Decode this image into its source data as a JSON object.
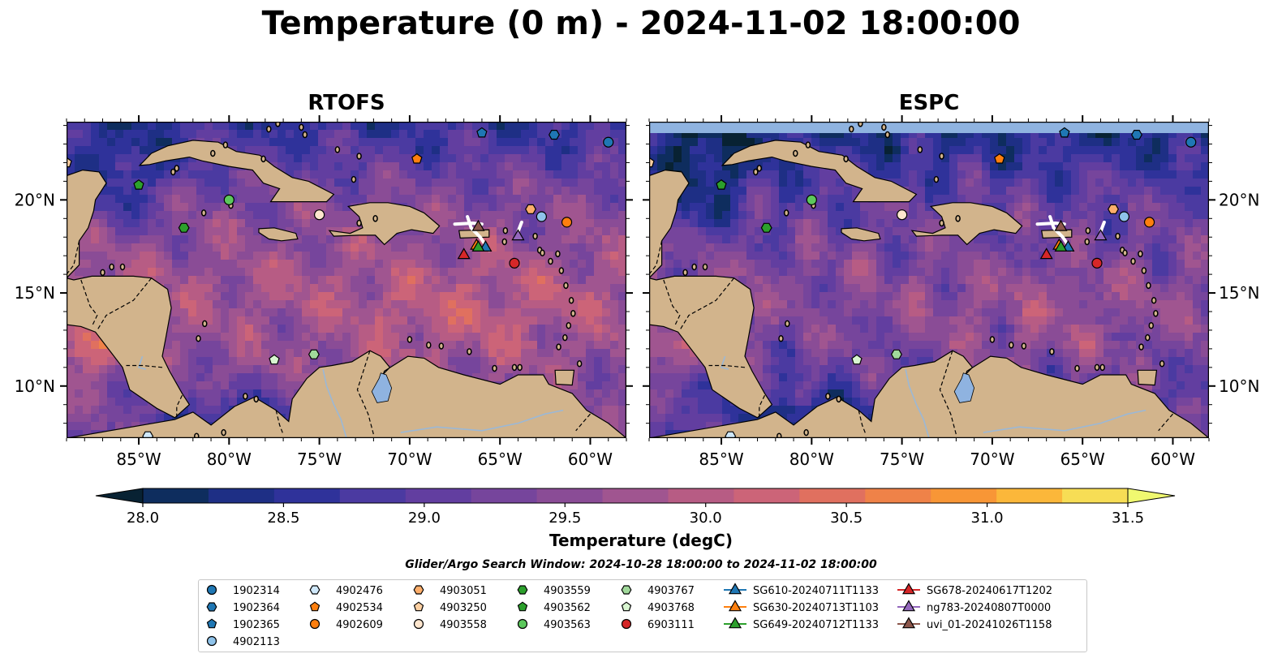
{
  "title": "Temperature (0 m) - 2024-11-02 18:00:00",
  "panels": [
    {
      "title": "RTOFS"
    },
    {
      "title": "ESPC"
    }
  ],
  "colorbar": {
    "label": "Temperature (degC)",
    "ticks": [
      "28.0",
      "28.5",
      "29.0",
      "29.5",
      "30.0",
      "30.5",
      "31.0",
      "31.5"
    ],
    "range": [
      28.0,
      31.5
    ],
    "extend": "both",
    "colors": [
      "#082233",
      "#0e2d5e",
      "#1e2f85",
      "#2f329a",
      "#4b3aa1",
      "#623ea0",
      "#76459c",
      "#8a4c96",
      "#a05590",
      "#b75c84",
      "#cc6478",
      "#e0705f",
      "#ef8248",
      "#f89636",
      "#fbb73a",
      "#f7dd55",
      "#f0f970"
    ]
  },
  "map_axes": {
    "lon_ticks": [
      "85°W",
      "80°W",
      "75°W",
      "70°W",
      "65°W",
      "60°W"
    ],
    "lat_ticks": [
      "20°N",
      "15°N",
      "10°N"
    ],
    "lon_range": [
      -89,
      -58
    ],
    "lat_range": [
      7.2,
      24.2
    ]
  },
  "search_window": "Glider/Argo Search Window: 2024-10-28 18:00:00 to 2024-11-02 18:00:00",
  "colors": {
    "land": "#d2b48c",
    "ocean_base": "#5a3e9c",
    "lake": "#8fb3e0"
  },
  "chart_data": {
    "type": "heatmap",
    "variable": "Temperature (0 m)",
    "units": "degC",
    "platforms": [
      {
        "name": "1902314",
        "marker": "circle",
        "color": "#1f77b4",
        "lon": -59.0,
        "lat": 23.1
      },
      {
        "name": "1902364",
        "marker": "hexagon",
        "color": "#1f77b4",
        "lon": -62.0,
        "lat": 23.5
      },
      {
        "name": "1902365",
        "marker": "pentagon",
        "color": "#1f77b4",
        "lon": -66.0,
        "lat": 23.6
      },
      {
        "name": "4902113",
        "marker": "circle",
        "color": "#8fc3ea",
        "lon": -62.7,
        "lat": 19.1
      },
      {
        "name": "4902476",
        "marker": "hexagon",
        "color": "#cfe8fa",
        "lon": -84.5,
        "lat": 7.3
      },
      {
        "name": "4902534",
        "marker": "pentagon",
        "color": "#ff7f0e",
        "lon": -69.6,
        "lat": 22.2
      },
      {
        "name": "4902609",
        "marker": "circle",
        "color": "#ff7f0e",
        "lon": -61.3,
        "lat": 18.8
      },
      {
        "name": "4903051",
        "marker": "hexagon",
        "color": "#fdae6b",
        "lon": -63.3,
        "lat": 19.5
      },
      {
        "name": "4903250",
        "marker": "pentagon",
        "color": "#fdd0a2",
        "lon": -89.0,
        "lat": 22.0
      },
      {
        "name": "4903558",
        "marker": "circle",
        "color": "#fee6ce",
        "lon": -75.0,
        "lat": 19.2
      },
      {
        "name": "4903559",
        "marker": "hexagon",
        "color": "#2ca02c",
        "lon": -82.5,
        "lat": 18.5
      },
      {
        "name": "4903562",
        "marker": "pentagon",
        "color": "#2ca02c",
        "lon": -85.0,
        "lat": 20.8
      },
      {
        "name": "4903563",
        "marker": "circle",
        "color": "#5cc85c",
        "lon": -80.0,
        "lat": 20.0
      },
      {
        "name": "4903767",
        "marker": "hexagon",
        "color": "#a1d99b",
        "lon": -75.3,
        "lat": 11.7
      },
      {
        "name": "4903768",
        "marker": "pentagon",
        "color": "#d8f5d0",
        "lon": -77.5,
        "lat": 11.4
      },
      {
        "name": "6903111",
        "marker": "circle",
        "color": "#d62728",
        "lon": -64.2,
        "lat": 16.6
      },
      {
        "name": "SG610-20240711T1133",
        "marker": "triangle",
        "color": "#1f77b4",
        "lon": -65.8,
        "lat": 17.5
      },
      {
        "name": "SG630-20240713T1103",
        "marker": "triangle",
        "color": "#ff7f0e",
        "lon": -66.3,
        "lat": 17.6
      },
      {
        "name": "SG649-20240712T1133",
        "marker": "triangle",
        "color": "#2ca02c",
        "lon": -66.2,
        "lat": 17.5
      },
      {
        "name": "SG678-20240617T1202",
        "marker": "triangle",
        "color": "#d62728",
        "lon": -67.0,
        "lat": 17.1
      },
      {
        "name": "ng783-20240807T0000",
        "marker": "triangle",
        "color": "#9467bd",
        "lon": -64.0,
        "lat": 18.1
      },
      {
        "name": "uvi_01-20241026T1158",
        "marker": "triangle",
        "color": "#8c564b",
        "lon": -66.2,
        "lat": 18.6
      }
    ]
  }
}
